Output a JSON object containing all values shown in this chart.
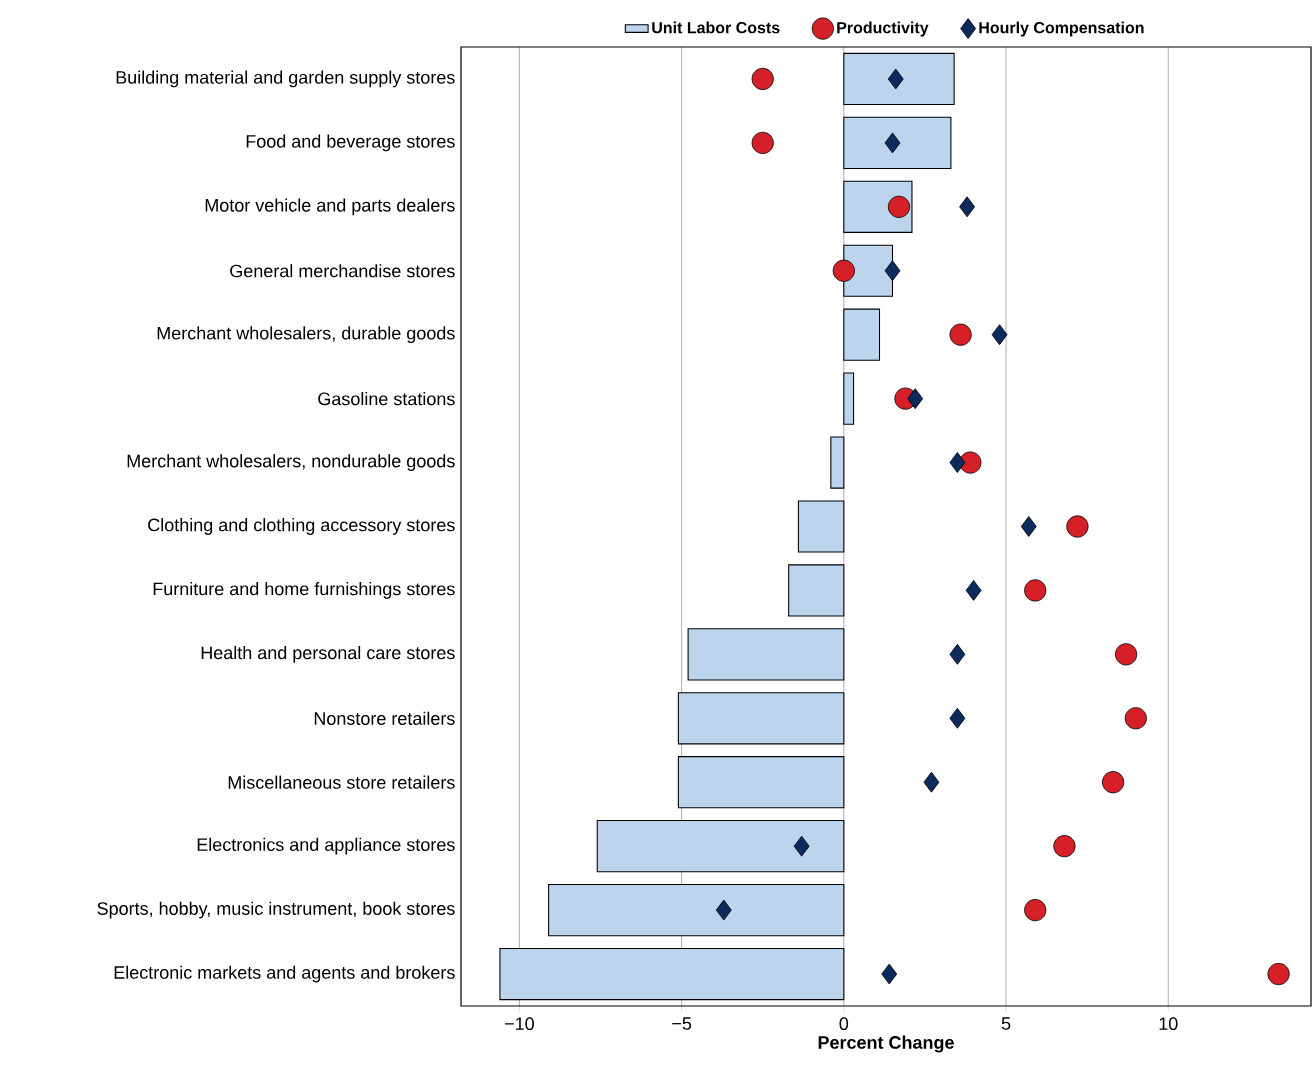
{
  "chart_data": {
    "type": "bar",
    "orientation": "horizontal",
    "xlabel": "Percent Change",
    "xlim": [
      -11.8,
      14.4
    ],
    "xticks": [
      {
        "value": -10,
        "label": "−10"
      },
      {
        "value": -5,
        "label": "−5"
      },
      0,
      5,
      10
    ],
    "grid": "x",
    "legend": "top",
    "categories": [
      "Building material and garden supply stores",
      "Food and beverage stores",
      "Motor vehicle and parts dealers",
      "General merchandise stores",
      "Merchant wholesalers, durable goods",
      "Gasoline stations",
      "Merchant wholesalers, nondurable goods",
      "Clothing and clothing accessory stores",
      "Furniture and home furnishings stores",
      "Health and personal care stores",
      "Nonstore retailers",
      "Miscellaneous store retailers",
      "Electronics and appliance stores",
      "Sports, hobby, music instrument, book stores",
      "Electronic markets and agents and brokers"
    ],
    "series": [
      {
        "name": "Unit Labor Costs",
        "color": "#bdd5ec",
        "values": [
          3.4,
          3.3,
          2.1,
          1.5,
          1.1,
          0.3,
          -0.4,
          -1.4,
          -1.7,
          -4.8,
          -5.1,
          -5.1,
          -7.6,
          -9.1,
          -10.6
        ]
      },
      {
        "name": "Productivity",
        "type": "scatter",
        "marker": "circle",
        "color": "#d62027",
        "values": [
          -2.5,
          -2.5,
          1.7,
          0.0,
          3.6,
          1.9,
          3.9,
          7.2,
          5.9,
          8.7,
          9.0,
          8.3,
          6.8,
          5.9,
          13.4
        ]
      },
      {
        "name": "Hourly Compensation",
        "type": "scatter",
        "marker": "diamond",
        "color": "#0b2a5e",
        "values": [
          1.6,
          1.5,
          3.8,
          1.5,
          4.8,
          2.2,
          3.5,
          5.7,
          4.0,
          3.5,
          3.5,
          2.7,
          -1.3,
          -3.7,
          1.4
        ]
      }
    ]
  }
}
